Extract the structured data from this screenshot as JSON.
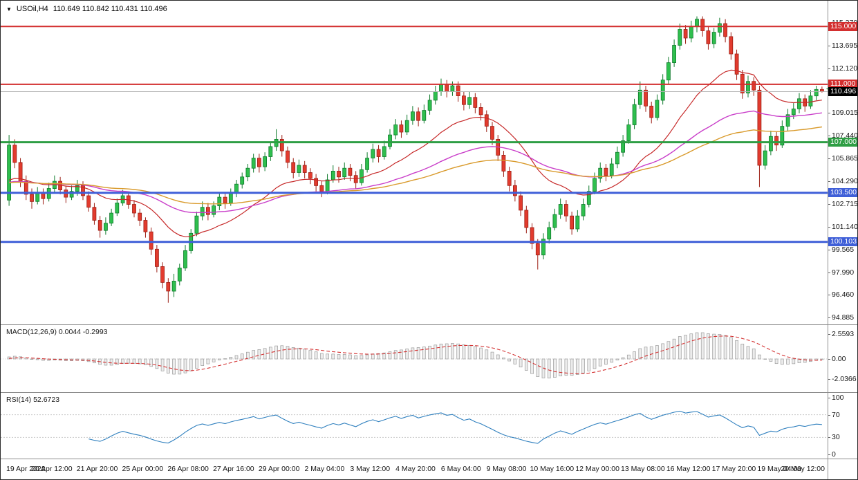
{
  "window": {
    "collapse_icon": "▼",
    "symbol_timeframe": "USOil,H4",
    "ohlc_readout": "110.649 110.842 110.431 110.496"
  },
  "chart_data": [
    {
      "type": "candlestick",
      "title": "USOil H4 candlestick chart",
      "ylim": [
        94.5,
        116.4
      ],
      "y_ticks": [
        "115.270",
        "113.695",
        "112.120",
        "109.015",
        "107.440",
        "105.865",
        "104.290",
        "102.715",
        "101.140",
        "99.565",
        "97.990",
        "96.460",
        "94.885"
      ],
      "x_labels": [
        "19 Apr 2022",
        "20 Apr 12:00",
        "21 Apr 20:00",
        "25 Apr 00:00",
        "26 Apr 08:00",
        "27 Apr 16:00",
        "29 Apr 00:00",
        "2 May 04:00",
        "3 May 12:00",
        "4 May 20:00",
        "6 May 04:00",
        "9 May 08:00",
        "10 May 16:00",
        "12 May 00:00",
        "13 May 08:00",
        "16 May 12:00",
        "17 May 20:00",
        "19 May 04:00",
        "20 May 12:00"
      ],
      "colors": {
        "bull": "#2fbf4e",
        "bull_edge": "#0e7a2b",
        "bear": "#e23b2e",
        "bear_edge": "#9c1f15",
        "last_price_line": "#b4b4b4"
      },
      "hlines": [
        {
          "value": 115.0,
          "label": "115.000",
          "color": "#d32f2f",
          "width": 2
        },
        {
          "value": 111.0,
          "label": "111.000",
          "color": "#d32f2f",
          "width": 2
        },
        {
          "value": 107.0,
          "label": "107.000",
          "color": "#2e9e44",
          "width": 3
        },
        {
          "value": 103.5,
          "label": "103.500",
          "color": "#3f5fd8",
          "width": 3
        },
        {
          "value": 100.103,
          "label": "100.103",
          "color": "#3f5fd8",
          "width": 3
        }
      ],
      "last_price": {
        "value": 110.496,
        "label": "110.496",
        "box_color": "#000000"
      },
      "marker": {
        "type": "arrow-left",
        "price": 110.7,
        "color": "#2fbf4e"
      },
      "overlays": [
        {
          "name": "ma-fast-red",
          "period": 21,
          "color": "#c62828",
          "width": 1.2
        },
        {
          "name": "ma-mid-magenta",
          "period": 55,
          "color": "#c93ec9",
          "width": 1.4
        },
        {
          "name": "ma-slow-orange",
          "period": 89,
          "color": "#d99a2b",
          "width": 1.4
        }
      ],
      "ohlc": [
        [
          103.0,
          107.5,
          102.6,
          106.8
        ],
        [
          106.8,
          107.2,
          105.2,
          105.6
        ],
        [
          105.6,
          105.9,
          103.9,
          104.3
        ],
        [
          104.3,
          104.7,
          103.0,
          103.4
        ],
        [
          103.4,
          103.8,
          102.4,
          102.9
        ],
        [
          102.9,
          103.9,
          102.7,
          103.5
        ],
        [
          103.5,
          103.8,
          102.7,
          103.1
        ],
        [
          103.1,
          104.2,
          102.9,
          103.8
        ],
        [
          103.8,
          104.7,
          103.5,
          104.3
        ],
        [
          104.3,
          104.6,
          103.4,
          103.7
        ],
        [
          103.7,
          104.0,
          102.8,
          103.2
        ],
        [
          103.2,
          104.0,
          103.0,
          103.6
        ],
        [
          103.6,
          104.4,
          103.3,
          104.0
        ],
        [
          104.0,
          104.3,
          103.0,
          103.3
        ],
        [
          103.3,
          103.6,
          102.2,
          102.5
        ],
        [
          102.5,
          102.8,
          101.3,
          101.6
        ],
        [
          101.6,
          101.9,
          100.4,
          100.9
        ],
        [
          100.9,
          101.8,
          100.6,
          101.4
        ],
        [
          101.4,
          102.4,
          101.2,
          102.1
        ],
        [
          102.1,
          103.1,
          101.9,
          102.8
        ],
        [
          102.8,
          103.7,
          102.6,
          103.3
        ],
        [
          103.3,
          103.6,
          102.4,
          102.7
        ],
        [
          102.7,
          103.0,
          101.8,
          102.1
        ],
        [
          102.1,
          102.4,
          101.2,
          101.6
        ],
        [
          101.6,
          101.8,
          100.4,
          100.8
        ],
        [
          100.8,
          101.1,
          99.2,
          99.6
        ],
        [
          99.6,
          99.9,
          98.0,
          98.4
        ],
        [
          98.4,
          98.7,
          96.9,
          97.3
        ],
        [
          97.3,
          97.6,
          95.9,
          96.7
        ],
        [
          96.7,
          97.9,
          96.3,
          97.4
        ],
        [
          97.4,
          98.6,
          97.1,
          98.3
        ],
        [
          98.3,
          99.9,
          98.1,
          99.5
        ],
        [
          99.5,
          101.0,
          99.3,
          100.7
        ],
        [
          100.7,
          102.2,
          100.5,
          101.9
        ],
        [
          101.9,
          102.9,
          101.6,
          102.5
        ],
        [
          102.5,
          102.8,
          101.6,
          102.0
        ],
        [
          102.0,
          102.9,
          101.8,
          102.6
        ],
        [
          102.6,
          103.5,
          102.3,
          103.2
        ],
        [
          103.2,
          103.5,
          102.4,
          102.8
        ],
        [
          102.8,
          103.8,
          102.6,
          103.5
        ],
        [
          103.5,
          104.4,
          103.2,
          104.1
        ],
        [
          104.1,
          104.9,
          103.8,
          104.6
        ],
        [
          104.6,
          105.5,
          104.3,
          105.2
        ],
        [
          105.2,
          106.2,
          104.9,
          105.9
        ],
        [
          105.9,
          106.2,
          104.9,
          105.3
        ],
        [
          105.3,
          106.3,
          105.0,
          106.0
        ],
        [
          106.0,
          107.0,
          105.7,
          106.7
        ],
        [
          106.7,
          107.9,
          106.4,
          107.2
        ],
        [
          107.2,
          107.5,
          106.0,
          106.4
        ],
        [
          106.4,
          106.7,
          105.2,
          105.6
        ],
        [
          105.6,
          105.9,
          104.5,
          104.9
        ],
        [
          104.9,
          105.8,
          104.6,
          105.4
        ],
        [
          105.4,
          105.7,
          104.5,
          104.9
        ],
        [
          104.9,
          105.2,
          104.1,
          104.5
        ],
        [
          104.5,
          104.8,
          103.6,
          104.0
        ],
        [
          104.0,
          104.3,
          103.2,
          103.6
        ],
        [
          103.6,
          104.8,
          103.4,
          104.4
        ],
        [
          104.4,
          105.4,
          104.2,
          105.0
        ],
        [
          105.0,
          105.3,
          104.2,
          104.6
        ],
        [
          104.6,
          105.6,
          104.4,
          105.2
        ],
        [
          105.2,
          105.5,
          104.3,
          104.7
        ],
        [
          104.7,
          105.0,
          103.8,
          104.2
        ],
        [
          104.2,
          105.5,
          104.0,
          105.1
        ],
        [
          105.1,
          106.3,
          104.9,
          105.9
        ],
        [
          105.9,
          106.9,
          105.6,
          106.5
        ],
        [
          106.5,
          106.8,
          105.6,
          106.0
        ],
        [
          106.0,
          107.1,
          105.8,
          106.7
        ],
        [
          106.7,
          107.9,
          106.5,
          107.5
        ],
        [
          107.5,
          108.6,
          107.2,
          108.2
        ],
        [
          108.2,
          108.5,
          107.3,
          107.7
        ],
        [
          107.7,
          108.9,
          107.5,
          108.5
        ],
        [
          108.5,
          109.5,
          108.2,
          109.1
        ],
        [
          109.1,
          109.4,
          108.1,
          108.5
        ],
        [
          108.5,
          109.6,
          108.3,
          109.2
        ],
        [
          109.2,
          110.3,
          108.9,
          109.9
        ],
        [
          109.9,
          110.9,
          109.6,
          110.5
        ],
        [
          110.5,
          111.4,
          110.2,
          111.0
        ],
        [
          111.0,
          111.3,
          110.1,
          110.5
        ],
        [
          110.5,
          111.2,
          110.2,
          110.9
        ],
        [
          110.9,
          111.2,
          109.8,
          110.2
        ],
        [
          110.2,
          110.5,
          109.2,
          109.6
        ],
        [
          109.6,
          110.5,
          109.3,
          110.1
        ],
        [
          110.1,
          110.4,
          109.0,
          109.4
        ],
        [
          109.4,
          109.7,
          108.5,
          108.9
        ],
        [
          108.9,
          109.2,
          107.7,
          108.1
        ],
        [
          108.1,
          108.4,
          106.8,
          107.2
        ],
        [
          107.2,
          107.5,
          105.7,
          106.1
        ],
        [
          106.1,
          106.4,
          104.6,
          105.0
        ],
        [
          105.0,
          105.3,
          103.6,
          104.0
        ],
        [
          104.0,
          104.4,
          102.9,
          103.3
        ],
        [
          103.3,
          103.6,
          101.9,
          102.3
        ],
        [
          102.3,
          102.6,
          100.7,
          101.1
        ],
        [
          101.1,
          101.4,
          99.6,
          100.0
        ],
        [
          100.0,
          100.3,
          98.2,
          99.2
        ],
        [
          99.2,
          100.7,
          98.9,
          100.3
        ],
        [
          100.3,
          101.5,
          100.0,
          101.1
        ],
        [
          101.1,
          102.4,
          100.9,
          102.0
        ],
        [
          102.0,
          103.1,
          101.7,
          102.7
        ],
        [
          102.7,
          103.0,
          101.5,
          101.9
        ],
        [
          101.9,
          102.2,
          100.6,
          101.0
        ],
        [
          101.0,
          102.3,
          100.8,
          101.9
        ],
        [
          101.9,
          103.1,
          101.6,
          102.7
        ],
        [
          102.7,
          104.0,
          102.5,
          103.6
        ],
        [
          103.6,
          104.9,
          103.4,
          104.5
        ],
        [
          104.5,
          105.6,
          104.2,
          105.2
        ],
        [
          105.2,
          105.5,
          104.3,
          104.7
        ],
        [
          104.7,
          105.9,
          104.5,
          105.5
        ],
        [
          105.5,
          106.7,
          105.2,
          106.3
        ],
        [
          106.3,
          107.5,
          106.0,
          107.1
        ],
        [
          107.1,
          108.6,
          106.9,
          108.2
        ],
        [
          108.2,
          110.0,
          107.9,
          109.6
        ],
        [
          109.6,
          111.2,
          109.3,
          110.6
        ],
        [
          110.6,
          110.9,
          109.1,
          109.5
        ],
        [
          109.5,
          109.8,
          108.3,
          108.7
        ],
        [
          108.7,
          110.3,
          108.5,
          109.9
        ],
        [
          109.9,
          111.7,
          109.6,
          111.3
        ],
        [
          111.3,
          112.9,
          111.0,
          112.5
        ],
        [
          112.5,
          114.1,
          112.2,
          113.7
        ],
        [
          113.7,
          115.2,
          113.4,
          114.8
        ],
        [
          114.8,
          115.1,
          113.8,
          114.2
        ],
        [
          114.2,
          115.4,
          113.9,
          115.0
        ],
        [
          115.0,
          115.7,
          114.6,
          115.5
        ],
        [
          115.5,
          115.7,
          114.3,
          114.7
        ],
        [
          114.7,
          115.0,
          113.4,
          113.8
        ],
        [
          113.8,
          114.9,
          113.5,
          114.6
        ],
        [
          114.6,
          115.6,
          114.3,
          115.2
        ],
        [
          115.2,
          115.5,
          113.9,
          114.3
        ],
        [
          114.3,
          114.6,
          112.7,
          113.1
        ],
        [
          113.1,
          113.4,
          111.3,
          111.7
        ],
        [
          111.7,
          112.0,
          110.0,
          110.4
        ],
        [
          110.4,
          111.6,
          110.1,
          111.2
        ],
        [
          111.2,
          111.5,
          110.2,
          110.6
        ],
        [
          110.6,
          110.9,
          103.9,
          105.4
        ],
        [
          105.4,
          106.8,
          105.1,
          106.4
        ],
        [
          106.4,
          107.8,
          106.1,
          107.4
        ],
        [
          107.4,
          107.7,
          106.4,
          106.8
        ],
        [
          106.8,
          108.5,
          106.6,
          108.1
        ],
        [
          108.1,
          109.3,
          107.8,
          108.9
        ],
        [
          108.9,
          109.7,
          108.6,
          109.3
        ],
        [
          109.3,
          110.4,
          109.0,
          110.0
        ],
        [
          110.0,
          110.3,
          109.1,
          109.5
        ],
        [
          109.5,
          110.6,
          109.3,
          110.2
        ],
        [
          110.2,
          110.9,
          109.9,
          110.649
        ],
        [
          110.649,
          110.842,
          110.431,
          110.496
        ]
      ]
    },
    {
      "type": "macd",
      "label": "MACD(12,26,9) 0.0044 -0.2993",
      "fast_period": 12,
      "slow_period": 26,
      "signal_period": 9,
      "macd_value": 0.0044,
      "signal_value": -0.2993,
      "y_ticks": [
        "2.5593",
        "0.00",
        "-2.0366"
      ],
      "colors": {
        "hist_fill": "#ececec",
        "hist_edge": "#9b9b9b",
        "signal": "#d32f2f",
        "zero_line": "#cfcfcf"
      }
    },
    {
      "type": "rsi",
      "label": "RSI(14) 52.6723",
      "period": 14,
      "current": 52.6723,
      "y_ticks": [
        "100",
        "70",
        "30",
        "0"
      ],
      "levels": [
        70,
        30
      ],
      "color": "#2e7fbe",
      "level_color": "#c8c8c8"
    }
  ]
}
